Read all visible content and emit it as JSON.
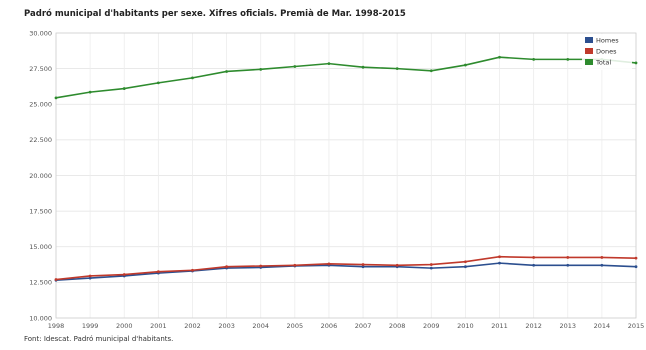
{
  "chart_data": {
    "type": "line",
    "title": "Padró municipal d'habitants per sexe. Xifres oficials. Premià de Mar. 1998-2015",
    "source": "Font: Idescat. Padró municipal d'habitants.",
    "x": [
      "1998",
      "1999",
      "2000",
      "2001",
      "2002",
      "2003",
      "2004",
      "2005",
      "2006",
      "2007",
      "2008",
      "2009",
      "2010",
      "2011",
      "2012",
      "2013",
      "2014",
      "2015"
    ],
    "ylim": [
      10000,
      30000
    ],
    "yticks": [
      "10.000",
      "12.500",
      "15.000",
      "17.500",
      "20.000",
      "22.500",
      "25.000",
      "27.500",
      "30.000"
    ],
    "ytick_values": [
      10000,
      12500,
      15000,
      17500,
      20000,
      22500,
      25000,
      27500,
      30000
    ],
    "grid": true,
    "legend_position": "top-right",
    "series": [
      {
        "name": "Homes",
        "color": "#2c4f8f",
        "values": [
          12650,
          12800,
          12950,
          13150,
          13300,
          13500,
          13550,
          13650,
          13700,
          13600,
          13600,
          13500,
          13600,
          13850,
          13700,
          13700,
          13700,
          13600
        ]
      },
      {
        "name": "Dones",
        "color": "#c0392b",
        "values": [
          12700,
          12950,
          13050,
          13250,
          13350,
          13600,
          13650,
          13700,
          13800,
          13750,
          13700,
          13750,
          13950,
          14300,
          14250,
          14250,
          14250,
          14200
        ]
      },
      {
        "name": "Total",
        "color": "#2e8b2e",
        "values": [
          25450,
          25850,
          26100,
          26500,
          26850,
          27300,
          27450,
          27650,
          27850,
          27600,
          27500,
          27350,
          27750,
          28300,
          28150,
          28150,
          28150,
          27900
        ]
      }
    ]
  }
}
